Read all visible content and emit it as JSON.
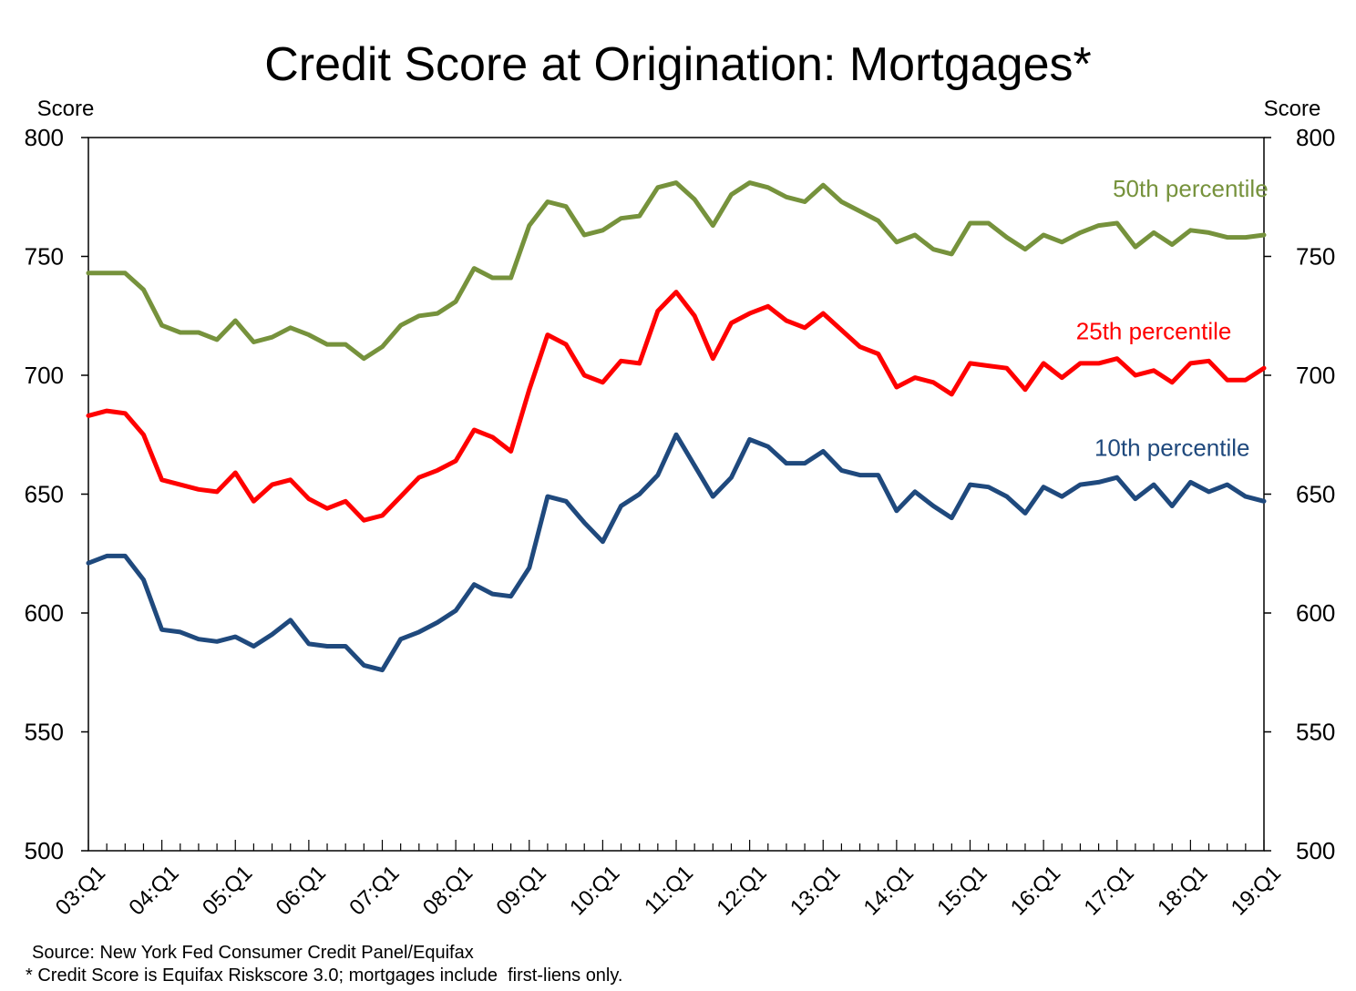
{
  "chart_data": {
    "type": "line",
    "title": "Credit Score at Origination: Mortgages*",
    "ylabel_left": "Score",
    "ylabel_right": "Score",
    "ylim": [
      500,
      800
    ],
    "yticks": [
      500,
      550,
      600,
      650,
      700,
      750,
      800
    ],
    "grid": false,
    "x": [
      "03:Q1",
      "03:Q2",
      "03:Q3",
      "03:Q4",
      "04:Q1",
      "04:Q2",
      "04:Q3",
      "04:Q4",
      "05:Q1",
      "05:Q2",
      "05:Q3",
      "05:Q4",
      "06:Q1",
      "06:Q2",
      "06:Q3",
      "06:Q4",
      "07:Q1",
      "07:Q2",
      "07:Q3",
      "07:Q4",
      "08:Q1",
      "08:Q2",
      "08:Q3",
      "08:Q4",
      "09:Q1",
      "09:Q2",
      "09:Q3",
      "09:Q4",
      "10:Q1",
      "10:Q2",
      "10:Q3",
      "10:Q4",
      "11:Q1",
      "11:Q2",
      "11:Q3",
      "11:Q4",
      "12:Q1",
      "12:Q2",
      "12:Q3",
      "12:Q4",
      "13:Q1",
      "13:Q2",
      "13:Q3",
      "13:Q4",
      "14:Q1",
      "14:Q2",
      "14:Q3",
      "14:Q4",
      "15:Q1",
      "15:Q2",
      "15:Q3",
      "15:Q4",
      "16:Q1",
      "16:Q2",
      "16:Q3",
      "16:Q4",
      "17:Q1",
      "17:Q2",
      "17:Q3",
      "17:Q4",
      "18:Q1",
      "18:Q2",
      "18:Q3",
      "18:Q4",
      "19:Q1"
    ],
    "xtick_labels": [
      "03:Q1",
      "04:Q1",
      "05:Q1",
      "06:Q1",
      "07:Q1",
      "08:Q1",
      "09:Q1",
      "10:Q1",
      "11:Q1",
      "12:Q1",
      "13:Q1",
      "14:Q1",
      "15:Q1",
      "16:Q1",
      "17:Q1",
      "18:Q1",
      "19:Q1"
    ],
    "series": [
      {
        "name": "50th percentile",
        "color": "#76923c",
        "values": [
          743,
          743,
          743,
          736,
          721,
          718,
          718,
          715,
          723,
          714,
          716,
          720,
          717,
          713,
          713,
          707,
          712,
          721,
          725,
          726,
          731,
          745,
          741,
          741,
          763,
          773,
          771,
          759,
          761,
          766,
          767,
          779,
          781,
          774,
          763,
          776,
          781,
          779,
          775,
          773,
          780,
          773,
          769,
          765,
          756,
          759,
          753,
          751,
          764,
          764,
          758,
          753,
          759,
          756,
          760,
          763,
          764,
          754,
          760,
          755,
          761,
          760,
          758,
          758,
          759
        ]
      },
      {
        "name": "25th percentile",
        "color": "#ff0000",
        "values": [
          683,
          685,
          684,
          675,
          656,
          654,
          652,
          651,
          659,
          647,
          654,
          656,
          648,
          644,
          647,
          639,
          641,
          649,
          657,
          660,
          664,
          677,
          674,
          668,
          694,
          717,
          713,
          700,
          697,
          706,
          705,
          727,
          735,
          725,
          707,
          722,
          726,
          729,
          723,
          720,
          726,
          719,
          712,
          709,
          695,
          699,
          697,
          692,
          705,
          704,
          703,
          694,
          705,
          699,
          705,
          705,
          707,
          700,
          702,
          697,
          705,
          706,
          698,
          698,
          703
        ]
      },
      {
        "name": "10th percentile",
        "color": "#1f497d",
        "values": [
          621,
          624,
          624,
          614,
          593,
          592,
          589,
          588,
          590,
          586,
          591,
          597,
          587,
          586,
          586,
          578,
          576,
          589,
          592,
          596,
          601,
          612,
          608,
          607,
          619,
          649,
          647,
          638,
          630,
          645,
          650,
          658,
          675,
          662,
          649,
          657,
          673,
          670,
          663,
          663,
          668,
          660,
          658,
          658,
          643,
          651,
          645,
          640,
          654,
          653,
          649,
          642,
          653,
          649,
          654,
          655,
          657,
          648,
          654,
          645,
          655,
          651,
          654,
          649,
          647
        ]
      }
    ],
    "notes": [
      "Source: New York Fed Consumer Credit Panel/Equifax",
      "* Credit Score is Equifax Riskscore 3.0; mortgages include  first-liens only."
    ]
  }
}
